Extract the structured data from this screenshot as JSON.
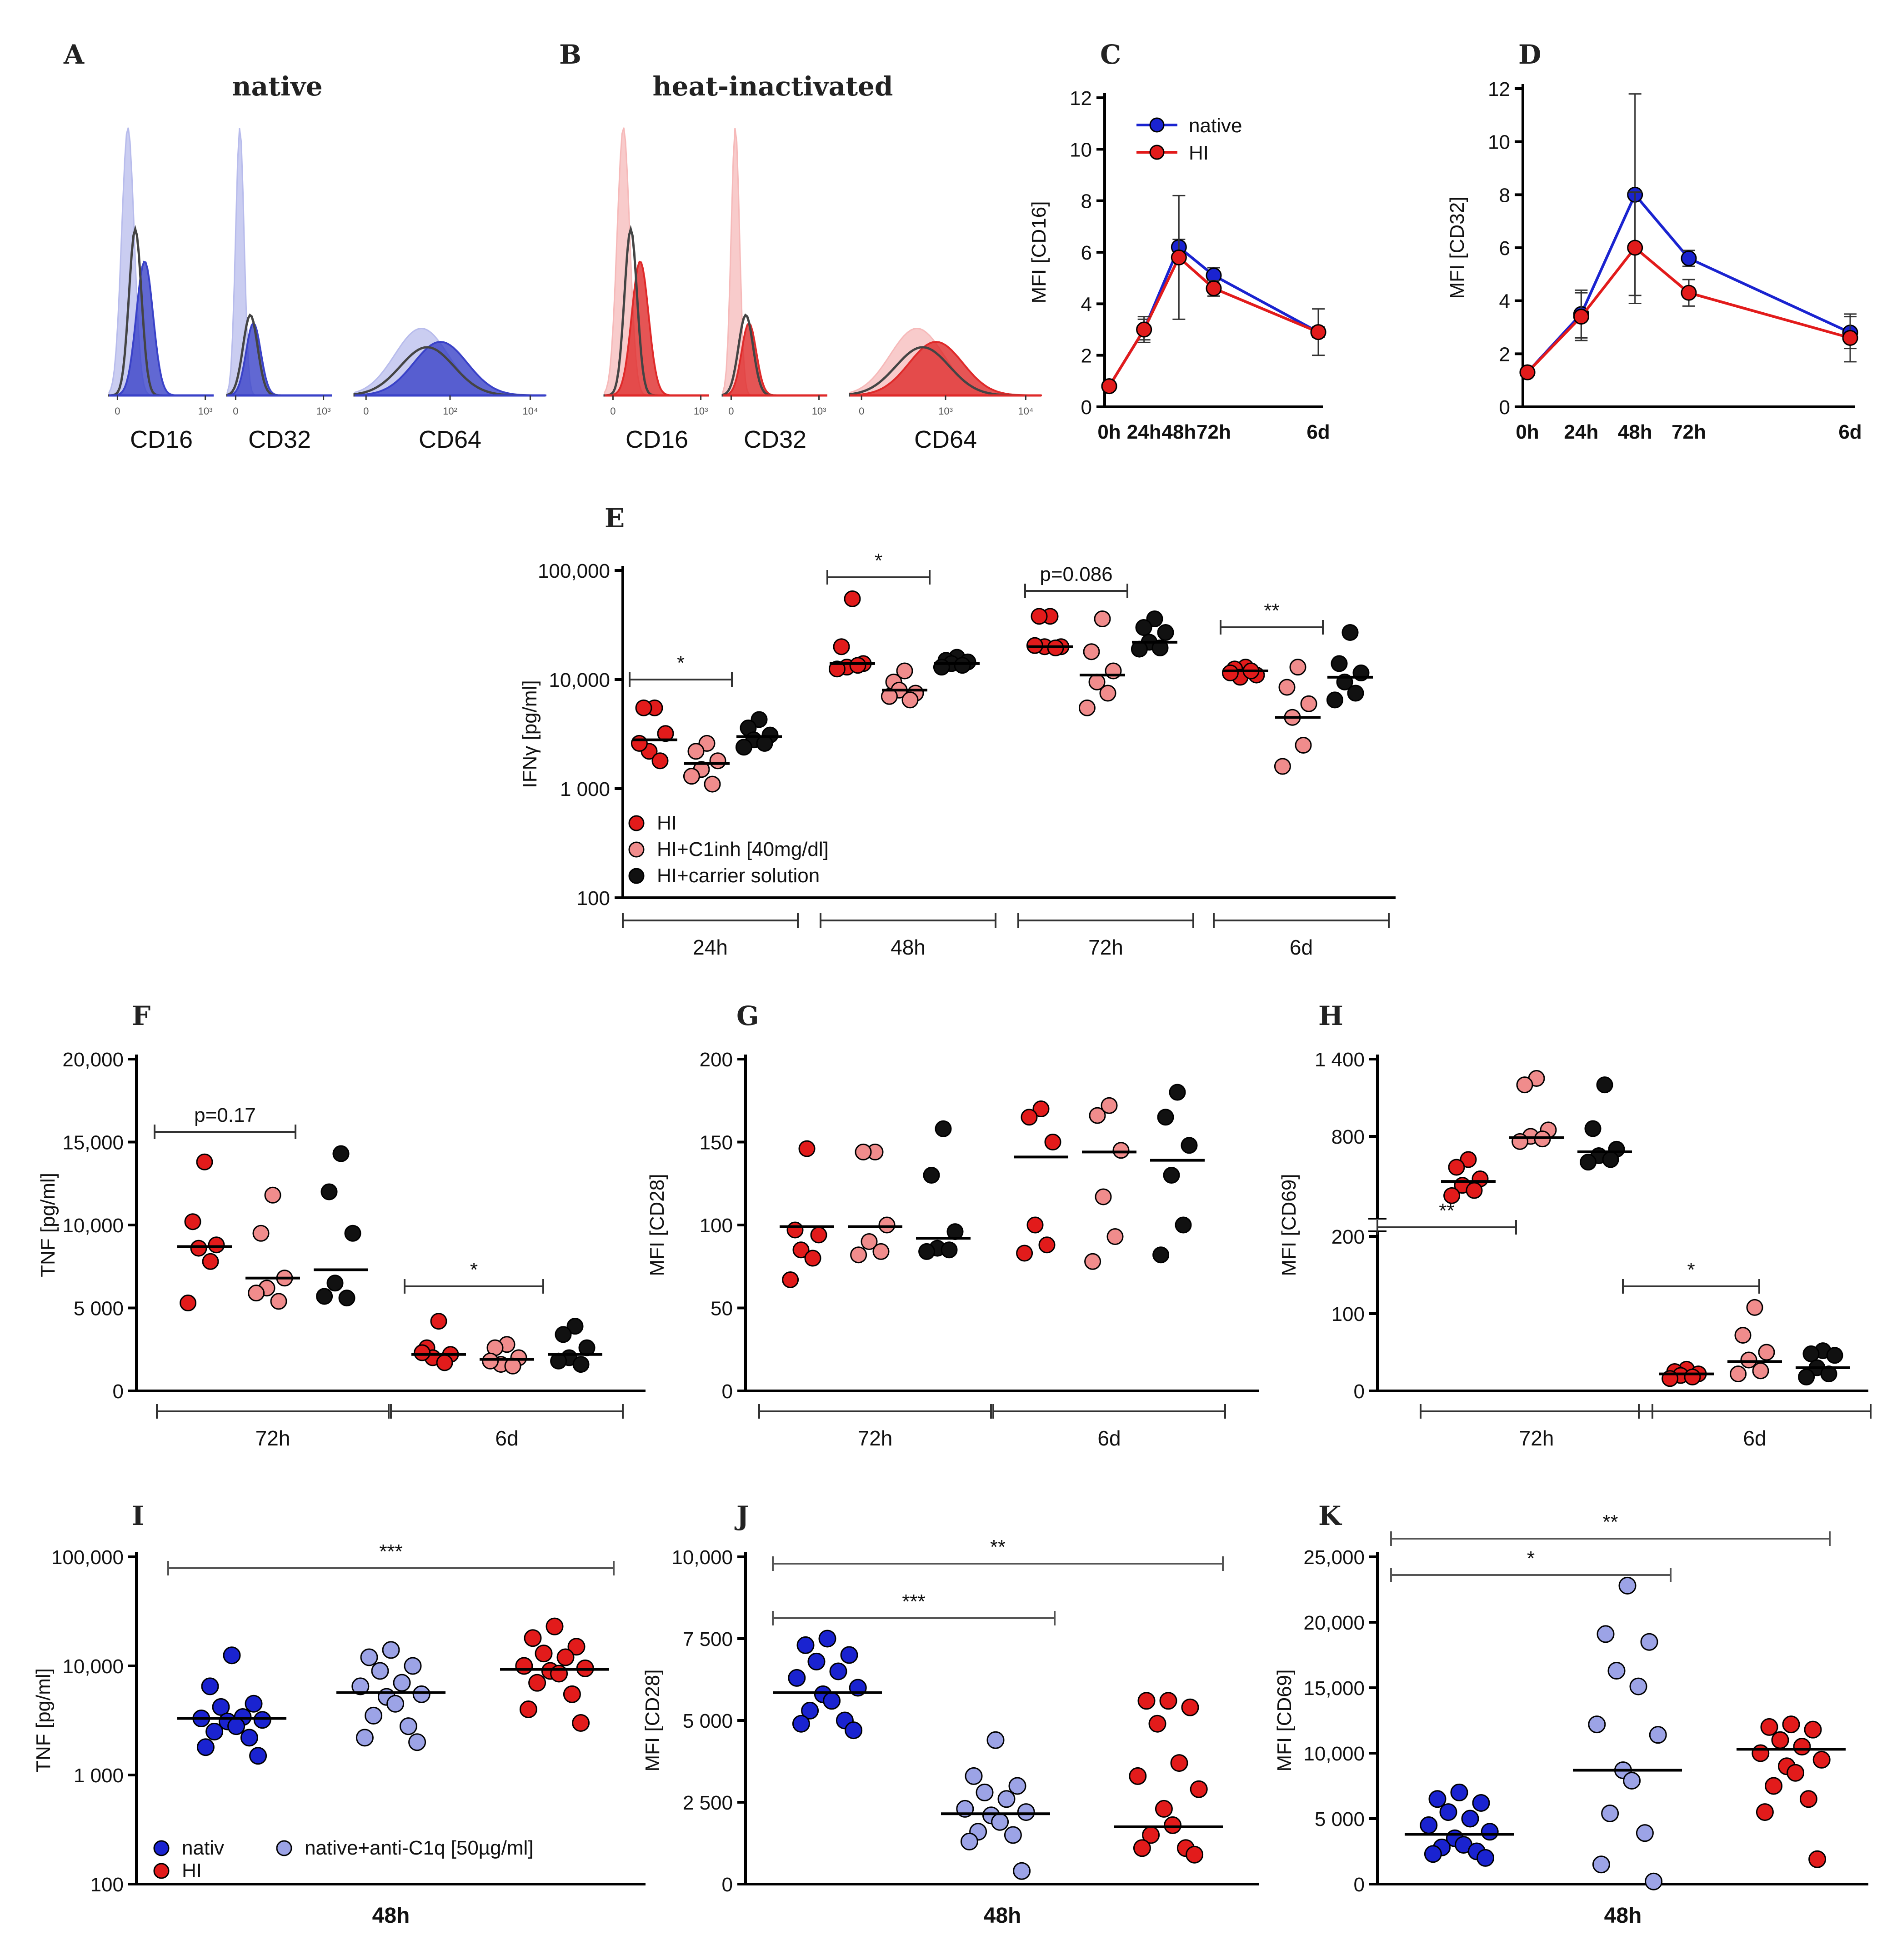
{
  "colors": {
    "native": "#1a23d0",
    "hi": "#e21b1b",
    "light_red": "#f08c8c",
    "black": "#111111",
    "light_blue": "#9ca3e6",
    "axis": "#000000",
    "hist_blue": "#3a42c8",
    "hist_blue_light": "#b8bcec",
    "hist_red": "#df2a2a",
    "hist_red_light": "#f6b9b9",
    "hist_grey": "#444444"
  },
  "chart_data": [
    {
      "id": "A",
      "panel_label": "A",
      "type": "histogram",
      "title": "native",
      "xlabels": [
        "CD16",
        "CD32",
        "CD64"
      ],
      "ticks": [
        [
          "0",
          "10³"
        ],
        [
          "0",
          "10³"
        ],
        [
          "0",
          "10²",
          "10⁴"
        ]
      ]
    },
    {
      "id": "B",
      "panel_label": "B",
      "type": "histogram",
      "title": "heat-inactivated",
      "xlabels": [
        "CD16",
        "CD32",
        "CD64"
      ],
      "ticks": [
        [
          "0",
          "10³"
        ],
        [
          "0",
          "10³"
        ],
        [
          "0",
          "10³",
          "10⁴"
        ]
      ]
    },
    {
      "id": "C",
      "panel_label": "C",
      "type": "line",
      "ylabel": "MFI [CD16]",
      "ylim": [
        0,
        12
      ],
      "yticks": [
        "0",
        "2",
        "4",
        "6",
        "8",
        "10",
        "12"
      ],
      "categories": [
        "0h",
        "24h",
        "48h",
        "72h",
        "6d"
      ],
      "x": [
        0,
        24,
        48,
        72,
        144
      ],
      "legend": [
        "native",
        "HI"
      ],
      "series": [
        {
          "name": "native",
          "values": [
            0.8,
            3.0,
            6.2,
            5.1,
            2.9
          ],
          "err": [
            0.1,
            0.4,
            0.3,
            0.3,
            0.2
          ]
        },
        {
          "name": "HI",
          "values": [
            0.8,
            3.0,
            5.8,
            4.6,
            2.9
          ],
          "err": [
            0.1,
            0.5,
            2.4,
            0.3,
            0.9
          ]
        }
      ]
    },
    {
      "id": "D",
      "panel_label": "D",
      "type": "line",
      "ylabel": "MFI [CD32]",
      "ylim": [
        0,
        12
      ],
      "yticks": [
        "0",
        "2",
        "4",
        "6",
        "8",
        "10",
        "12"
      ],
      "categories": [
        "0h",
        "24h",
        "48h",
        "72h",
        "6d"
      ],
      "x": [
        0,
        24,
        48,
        72,
        144
      ],
      "series": [
        {
          "name": "native",
          "values": [
            1.3,
            3.5,
            8.0,
            5.6,
            2.8
          ],
          "err": [
            0.1,
            0.9,
            3.8,
            0.3,
            0.6
          ]
        },
        {
          "name": "HI",
          "values": [
            1.3,
            3.4,
            6.0,
            4.3,
            2.6
          ],
          "err": [
            0.1,
            0.9,
            2.1,
            0.5,
            0.9
          ]
        }
      ]
    },
    {
      "id": "E",
      "panel_label": "E",
      "type": "scatter",
      "ylabel": "IFNγ [pg/ml]",
      "yscale": "log",
      "ylim": [
        100,
        100000
      ],
      "yticks": [
        "100",
        "1 000",
        "10,000",
        "100,000"
      ],
      "groups": [
        "24h",
        "48h",
        "72h",
        "6d"
      ],
      "legend": [
        "HI",
        "HI+C1inh [40mg/dl]",
        "HI+carrier solution"
      ],
      "series": [
        {
          "name": "HI",
          "values": [
            [
              5500,
              5500,
              3200,
              2200,
              1800,
              2600
            ],
            [
              55000,
              20000,
              14000,
              13000,
              13500,
              12500
            ],
            [
              38000,
              38000,
              20000,
              20000,
              19500,
              20500
            ],
            [
              13000,
              12500,
              11000,
              10500,
              12000,
              11500
            ]
          ],
          "medians": [
            2800,
            14000,
            20000,
            12000
          ]
        },
        {
          "name": "HI+C1inh [40mg/dl]",
          "values": [
            [
              2600,
              2200,
              1800,
              1500,
              1100,
              1300
            ],
            [
              12000,
              9500,
              7500,
              8000,
              6500,
              7000
            ],
            [
              36000,
              18000,
              12000,
              9500,
              7500,
              5500
            ],
            [
              13000,
              8500,
              6000,
              4500,
              2500,
              1600
            ]
          ],
          "medians": [
            1700,
            8000,
            11000,
            4500
          ]
        },
        {
          "name": "HI+carrier solution",
          "values": [
            [
              4300,
              3600,
              3100,
              2800,
              2600,
              2400
            ],
            [
              16000,
              15000,
              14500,
              14000,
              13500,
              13000
            ],
            [
              36000,
              30000,
              27000,
              22000,
              19500,
              19000
            ],
            [
              27000,
              14000,
              11500,
              9500,
              7500,
              6500
            ]
          ],
          "medians": [
            3000,
            14000,
            22000,
            10500
          ]
        }
      ],
      "significance": [
        {
          "group": "24h",
          "label": "*"
        },
        {
          "group": "48h",
          "label": "*"
        },
        {
          "group": "72h",
          "label": "p=0.086"
        },
        {
          "group": "6d",
          "label": "**"
        }
      ]
    },
    {
      "id": "F",
      "panel_label": "F",
      "type": "scatter",
      "ylabel": "TNF [pg/ml]",
      "ylim": [
        0,
        20000
      ],
      "yticks": [
        "0",
        "5 000",
        "10,000",
        "15,000",
        "20,000"
      ],
      "groups": [
        "72h",
        "6d"
      ],
      "series": [
        {
          "name": "HI",
          "values": [
            [
              13800,
              10200,
              8800,
              8600,
              7800,
              5300
            ],
            [
              4200,
              2600,
              2200,
              2000,
              1700,
              2300
            ]
          ],
          "medians": [
            8700,
            2200
          ]
        },
        {
          "name": "HI+C1inh [40mg/dl]",
          "values": [
            [
              11800,
              9500,
              6800,
              6200,
              5400,
              5900
            ],
            [
              2800,
              2600,
              2000,
              1600,
              1500,
              1800
            ]
          ],
          "medians": [
            6800,
            1900
          ]
        },
        {
          "name": "HI+carrier solution",
          "values": [
            [
              14300,
              12000,
              9500,
              6500,
              5600,
              5700
            ],
            [
              3900,
              3400,
              2600,
              2000,
              1600,
              1800
            ]
          ],
          "medians": [
            7300,
            2200
          ]
        }
      ],
      "significance": [
        {
          "group": "72h",
          "label": "p=0.17"
        },
        {
          "group": "6d",
          "label": "*"
        }
      ]
    },
    {
      "id": "G",
      "panel_label": "G",
      "type": "scatter",
      "ylabel": "MFI [CD28]",
      "ylim": [
        0,
        200
      ],
      "yticks": [
        "0",
        "50",
        "100",
        "150",
        "200"
      ],
      "groups": [
        "72h",
        "6d"
      ],
      "series": [
        {
          "name": "HI",
          "values": [
            [
              146,
              97,
              94,
              85,
              80,
              67
            ],
            [
              170,
              165,
              150,
              100,
              88,
              83
            ]
          ],
          "medians": [
            99,
            141
          ]
        },
        {
          "name": "HI+C1inh [40mg/dl]",
          "values": [
            [
              144,
              144,
              100,
              90,
              84,
              82
            ],
            [
              172,
              166,
              145,
              117,
              93,
              78
            ]
          ],
          "medians": [
            99,
            144
          ]
        },
        {
          "name": "HI+carrier solution",
          "values": [
            [
              158,
              130,
              96,
              86,
              85,
              84
            ],
            [
              180,
              165,
              148,
              130,
              100,
              82
            ]
          ],
          "medians": [
            92,
            139
          ]
        }
      ]
    },
    {
      "id": "H",
      "panel_label": "H",
      "type": "scatter",
      "ylabel": "MFI [CD69]",
      "yscale": "broken",
      "ylim": [
        0,
        1400
      ],
      "yticks": [
        "0",
        "100",
        "200",
        "800",
        "1 400"
      ],
      "groups": [
        "72h",
        "6d"
      ],
      "series": [
        {
          "name": "HI",
          "values": [
            [
              620,
              560,
              470,
              420,
              380,
              340
            ],
            [
              28,
              25,
              22,
              20,
              18,
              16
            ]
          ],
          "medians": [
            450,
            22
          ]
        },
        {
          "name": "HI+C1inh [40mg/dl]",
          "values": [
            [
              1250,
              1200,
              850,
              800,
              780,
              760
            ],
            [
              108,
              72,
              50,
              40,
              26,
              22
            ]
          ],
          "medians": [
            790,
            38
          ]
        },
        {
          "name": "HI+carrier solution",
          "values": [
            [
              1200,
              860,
              700,
              650,
              620,
              600
            ],
            [
              52,
              48,
              46,
              30,
              22,
              18
            ]
          ],
          "medians": [
            680,
            30
          ]
        }
      ],
      "significance": [
        {
          "group": "72h",
          "label": "**"
        },
        {
          "group": "6d",
          "label": "*"
        }
      ]
    },
    {
      "id": "I",
      "panel_label": "I",
      "type": "scatter",
      "ylabel": "TNF [pg/ml]",
      "yscale": "log",
      "ylim": [
        100,
        100000
      ],
      "yticks": [
        "100",
        "1 000",
        "10,000",
        "100,000"
      ],
      "groups": [
        "48h"
      ],
      "legend": [
        "nativ",
        "native+anti-C1q [50µg/ml]",
        "HI"
      ],
      "series": [
        {
          "name": "nativ",
          "values": [
            12500,
            6500,
            4500,
            4200,
            3400,
            3300,
            3200,
            3100,
            2800,
            2500,
            2200,
            1800,
            1500
          ],
          "median": 3300
        },
        {
          "name": "native+anti-C1q [50µg/ml]",
          "values": [
            14000,
            12000,
            10000,
            9000,
            7000,
            6500,
            5500,
            5200,
            4500,
            3500,
            2800,
            2200,
            2000
          ],
          "median": 5700
        },
        {
          "name": "HI",
          "values": [
            23000,
            18000,
            15000,
            13000,
            12000,
            10000,
            9500,
            9000,
            8500,
            7000,
            5500,
            4000,
            3000
          ],
          "median": 9300
        }
      ],
      "significance": [
        {
          "label": "***"
        }
      ]
    },
    {
      "id": "J",
      "panel_label": "J",
      "type": "scatter",
      "ylabel": "MFI [CD28]",
      "ylim": [
        0,
        10000
      ],
      "yticks": [
        "0",
        "2 500",
        "5 000",
        "7 500",
        "10,000"
      ],
      "groups": [
        "48h"
      ],
      "series": [
        {
          "name": "nativ",
          "values": [
            7500,
            7300,
            7000,
            6800,
            6500,
            6300,
            6000,
            5800,
            5600,
            5300,
            5000,
            4900,
            4700
          ],
          "median": 5850
        },
        {
          "name": "native+anti-C1q [50µg/ml]",
          "values": [
            4400,
            3300,
            3000,
            2800,
            2600,
            2300,
            2200,
            2100,
            1900,
            1600,
            1500,
            1300,
            400
          ],
          "median": 2150
        },
        {
          "name": "HI",
          "values": [
            5600,
            5600,
            5400,
            4900,
            3700,
            3300,
            2900,
            2300,
            1800,
            1500,
            1100,
            1100,
            900
          ],
          "median": 1750
        }
      ],
      "significance": [
        {
          "label": "***"
        },
        {
          "label": "**"
        }
      ]
    },
    {
      "id": "K",
      "panel_label": "K",
      "type": "scatter",
      "ylabel": "MFI [CD69]",
      "ylim": [
        0,
        25000
      ],
      "yticks": [
        "0",
        "5 000",
        "10,000",
        "15,000",
        "20,000",
        "25,000"
      ],
      "groups": [
        "48h"
      ],
      "series": [
        {
          "name": "nativ",
          "values": [
            7000,
            6500,
            6200,
            5500,
            5000,
            4500,
            4000,
            3500,
            3000,
            2800,
            2500,
            2300,
            2000
          ],
          "median": 3800
        },
        {
          "name": "native+anti-C1q [50µg/ml]",
          "values": [
            22800,
            19100,
            18500,
            16300,
            15100,
            12200,
            11400,
            8700,
            7900,
            5400,
            3900,
            1500,
            200
          ],
          "median": 8700
        },
        {
          "name": "HI",
          "values": [
            12200,
            12000,
            11800,
            11000,
            10500,
            10000,
            9500,
            9000,
            8500,
            7500,
            6500,
            5500,
            1900
          ],
          "median": 10300
        }
      ],
      "significance": [
        {
          "label": "*"
        },
        {
          "label": "**"
        }
      ]
    }
  ]
}
